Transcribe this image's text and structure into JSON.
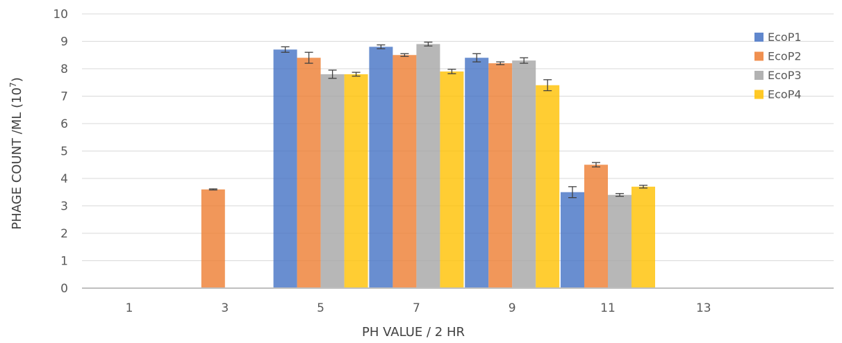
{
  "chart_data": {
    "type": "bar",
    "title": "",
    "xlabel": "PH VALUE / 2 HR",
    "ylabel_main": "PHAGE COUNT /ML (10",
    "ylabel_sup": "7",
    "ylabel_close": ")",
    "categories": [
      "1",
      "3",
      "5",
      "7",
      "9",
      "11",
      "13"
    ],
    "ylim": [
      0,
      10
    ],
    "yticks": [
      0,
      1,
      2,
      3,
      4,
      5,
      6,
      7,
      8,
      9,
      10
    ],
    "grid": "horizontal",
    "legend_position": "right",
    "series": [
      {
        "name": "EcoP1",
        "color": "#4472C4",
        "values": [
          0,
          0,
          8.7,
          8.8,
          8.4,
          3.5,
          0
        ],
        "errors": [
          0,
          0,
          0.1,
          0.07,
          0.15,
          0.2,
          0
        ]
      },
      {
        "name": "EcoP2",
        "color": "#ED7D31",
        "values": [
          0,
          3.6,
          8.4,
          8.5,
          8.2,
          4.5,
          0
        ],
        "errors": [
          0,
          0.02,
          0.2,
          0.05,
          0.05,
          0.08,
          0
        ]
      },
      {
        "name": "EcoP3",
        "color": "#A5A5A5",
        "values": [
          0,
          0,
          7.8,
          8.9,
          8.3,
          3.4,
          0
        ],
        "errors": [
          0,
          0,
          0.15,
          0.07,
          0.1,
          0.05,
          0
        ]
      },
      {
        "name": "EcoP4",
        "color": "#FFC000",
        "values": [
          0,
          0,
          7.8,
          7.9,
          7.4,
          3.7,
          0
        ],
        "errors": [
          0,
          0,
          0.07,
          0.08,
          0.2,
          0.05,
          0
        ]
      }
    ]
  }
}
